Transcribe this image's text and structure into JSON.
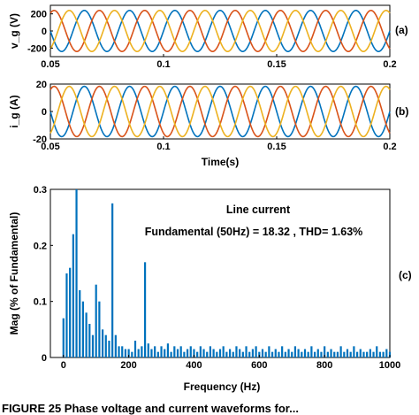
{
  "chart_data": [
    {
      "type": "line",
      "panel_label": "(a)",
      "ylabel": "v_g (V)",
      "xlim": [
        0.05,
        0.2
      ],
      "ylim": [
        -300,
        300
      ],
      "xticks": [
        "0.05",
        "0.1",
        "0.15",
        "0.2"
      ],
      "yticks": [
        "200",
        "0",
        "-200"
      ],
      "waveform": {
        "frequency_hz": 50,
        "amplitude": 240,
        "phases": 3
      },
      "colors": [
        "#0072BD",
        "#D95319",
        "#EDB120"
      ]
    },
    {
      "type": "line",
      "panel_label": "(b)",
      "ylabel": "i_g (A)",
      "xlabel": "Time(s)",
      "xlim": [
        0.05,
        0.2
      ],
      "ylim": [
        -20,
        20
      ],
      "xticks": [
        "0.05",
        "0.1",
        "0.15",
        "0.2"
      ],
      "yticks": [
        "20",
        "0",
        "-20"
      ],
      "waveform": {
        "frequency_hz": 50,
        "amplitude": 18.32,
        "phases": 3
      },
      "colors": [
        "#0072BD",
        "#D95319",
        "#EDB120"
      ]
    },
    {
      "type": "bar",
      "panel_label": "(c)",
      "title": "Line current",
      "annotation": "Fundamental (50Hz) = 18.32 , THD= 1.63%",
      "xlabel": "Frequency (Hz)",
      "ylabel": "Mag (% of Fundamental)",
      "xlim": [
        -40,
        1000
      ],
      "ylim": [
        0,
        0.3
      ],
      "xticks": [
        "0",
        "200",
        "400",
        "600",
        "800",
        "1000"
      ],
      "yticks": [
        "0",
        "0.1",
        "0.2",
        "0.3"
      ],
      "color": "#0072BD",
      "x": [
        0,
        10,
        20,
        30,
        40,
        50,
        60,
        70,
        80,
        90,
        100,
        110,
        120,
        130,
        140,
        150,
        160,
        170,
        180,
        190,
        200,
        210,
        220,
        230,
        240,
        250,
        260,
        270,
        280,
        290,
        300,
        310,
        320,
        330,
        340,
        350,
        360,
        370,
        380,
        390,
        400,
        410,
        420,
        430,
        440,
        450,
        460,
        470,
        480,
        490,
        500,
        510,
        520,
        530,
        540,
        550,
        560,
        570,
        580,
        590,
        600,
        610,
        620,
        630,
        640,
        650,
        660,
        670,
        680,
        690,
        700,
        710,
        720,
        730,
        740,
        750,
        760,
        770,
        780,
        790,
        800,
        810,
        820,
        830,
        840,
        850,
        860,
        870,
        880,
        890,
        900,
        910,
        920,
        930,
        940,
        950,
        960,
        970,
        980,
        990,
        1000
      ],
      "values": [
        0.07,
        0.15,
        0.16,
        0.22,
        0.3,
        0.12,
        0.1,
        0.08,
        0.06,
        0.04,
        0.13,
        0.1,
        0.05,
        0.04,
        0.03,
        0.275,
        0.04,
        0.02,
        0.02,
        0.015,
        0.015,
        0.01,
        0.03,
        0.015,
        0.02,
        0.17,
        0.025,
        0.015,
        0.02,
        0.01,
        0.02,
        0.015,
        0.025,
        0.01,
        0.02,
        0.015,
        0.02,
        0.01,
        0.015,
        0.02,
        0.015,
        0.01,
        0.02,
        0.015,
        0.01,
        0.02,
        0.015,
        0.01,
        0.015,
        0.02,
        0.01,
        0.015,
        0.01,
        0.02,
        0.015,
        0.01,
        0.02,
        0.01,
        0.015,
        0.02,
        0.01,
        0.015,
        0.01,
        0.02,
        0.01,
        0.015,
        0.01,
        0.02,
        0.01,
        0.015,
        0.01,
        0.02,
        0.015,
        0.01,
        0.015,
        0.01,
        0.02,
        0.01,
        0.015,
        0.01,
        0.02,
        0.01,
        0.015,
        0.01,
        0.01,
        0.02,
        0.01,
        0.015,
        0.01,
        0.02,
        0.01,
        0.015,
        0.01,
        0.01,
        0.015,
        0.01,
        0.02,
        0.01,
        0.01,
        0.015,
        0.01
      ]
    }
  ],
  "caption_fragment": "FIGURE 25  Phase voltage and current waveforms for..."
}
